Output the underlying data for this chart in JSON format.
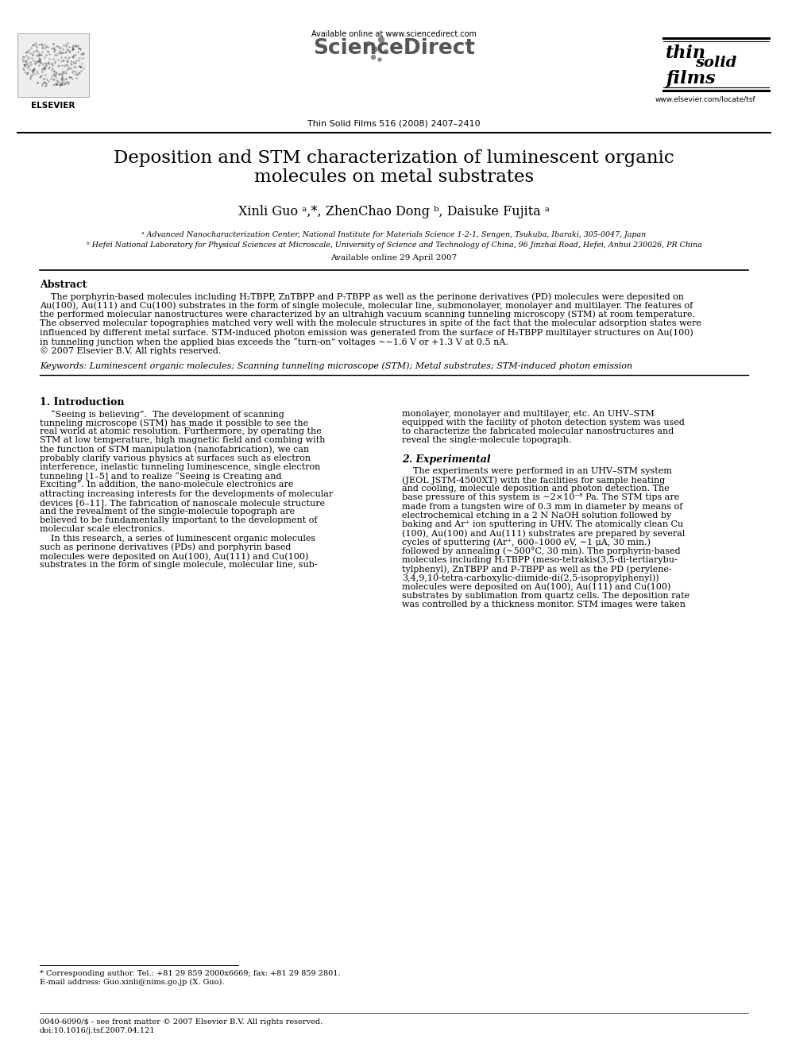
{
  "title_line1": "Deposition and STM characterization of luminescent organic",
  "title_line2": "molecules on metal substrates",
  "authors": "Xinli Guo ᵃ,*, ZhenChao Dong ᵇ, Daisuke Fujita ᵃ",
  "affil_a": "ᵃ Advanced Nanocharacterization Center, National Institute for Materials Science 1-2-1, Sengen, Tsukuba, Ibaraki, 305-0047, Japan",
  "affil_b": "ᵇ Hefei National Laboratory for Physical Sciences at Microscale, University of Science and Technology of China, 96 Jinzhai Road, Hefei, Anhui 230026, PR China",
  "available_online_article": "Available online 29 April 2007",
  "journal_header": "Available online at www.sciencedirect.com",
  "journal_name": "ScienceDirect",
  "journal_ref": "Thin Solid Films 516 (2008) 2407–2410",
  "journal_website": "www.elsevier.com/locate/tsf",
  "elsevier_label": "ELSEVIER",
  "abstract_title": "Abstract",
  "keywords_line": "Keywords: Luminescent organic molecules; Scanning tunneling microscope (STM); Metal substrates; STM-induced photon emission",
  "section1_title": "1. Introduction",
  "section2_title": "2. Experimental",
  "footnote1": "* Corresponding author. Tel.: +81 29 859 2000x6669; fax: +81 29 859 2801.",
  "footnote2": "E-mail address: Guo.xinli@nims.go.jp (X. Guo).",
  "footer1": "0040-6090/$ - see front matter © 2007 Elsevier B.V. All rights reserved.",
  "footer2": "doi:10.1016/j.tsf.2007.04.121",
  "abstract_lines": [
    "    The porphyrin-based molecules including H₂TBPP, ZnTBPP and P₇TBPP as well as the perinone derivatives (PD) molecules were deposited on",
    "Au(100), Au(111) and Cu(100) substrates in the form of single molecule, molecular line, submonolayer, monolayer and multilayer. The features of",
    "the performed molecular nanostructures were characterized by an ultrahigh vacuum scanning tunneling microscopy (STM) at room temperature.",
    "The observed molecular topographies matched very well with the molecule structures in spite of the fact that the molecular adsorption states were",
    "influenced by different metal surface. STM-induced photon emission was generated from the surface of H₂TBPP multilayer structures on Au(100)",
    "in tunneling junction when the applied bias exceeds the “turn-on” voltages ∼−1.6 V or +1.3 V at 0.5 nA.",
    "© 2007 Elsevier B.V. All rights reserved."
  ],
  "sec1_left_lines": [
    "    “Seeing is believing”.  The development of scanning",
    "tunneling microscope (STM) has made it possible to see the",
    "real world at atomic resolution. Furthermore, by operating the",
    "STM at low temperature, high magnetic field and combing with",
    "the function of STM manipulation (nanofabrication), we can",
    "probably clarify various physics at surfaces such as electron",
    "interference, inelastic tunneling luminescence, single electron",
    "tunneling [1–5] and to realize “Seeing is Creating and",
    "Exciting”. In addition, the nano-molecule electronics are",
    "attracting increasing interests for the developments of molecular",
    "devices [6–11]. The fabrication of nanoscale molecule structure",
    "and the revealment of the single-molecule topograph are",
    "believed to be fundamentally important to the development of",
    "molecular scale electronics.",
    "    In this research, a series of luminescent organic molecules",
    "such as perinone derivatives (PDs) and porphyrin based",
    "molecules were deposited on Au(100), Au(111) and Cu(100)",
    "substrates in the form of single molecule, molecular line, sub-"
  ],
  "sec1_right_lines": [
    "monolayer, monolayer and multilayer, etc. An UHV–STM",
    "equipped with the facility of photon detection system was used",
    "to characterize the fabricated molecular nanostructures and",
    "reveal the single-molecule topograph."
  ],
  "sec2_right_lines": [
    "    The experiments were performed in an UHV–STM system",
    "(JEOL JSTM-4500XT) with the facilities for sample heating",
    "and cooling, molecule deposition and photon detection. The",
    "base pressure of this system is ∼2×10⁻⁸ Pa. The STM tips are",
    "made from a tungsten wire of 0.3 mm in diameter by means of",
    "electrochemical etching in a 2 N NaOH solution followed by",
    "baking and Ar⁺ ion sputtering in UHV. The atomically clean Cu",
    "(100), Au(100) and Au(111) substrates are prepared by several",
    "cycles of sputtering (Ar⁺, 600–1000 eV, ∼1 μA, 30 min.)",
    "followed by annealing (∼500°C, 30 min). The porphyrin-based",
    "molecules including H₂TBPP (meso-tetrakis(3,5-di-tertiarybu-",
    "tylphenyl), ZnTBPP and P₇TBPP as well as the PD (perylene-",
    "3,4,9,10-tetra-carboxylic-diimide-di(2,5-isopropylphenyl))",
    "molecules were deposited on Au(100), Au(111) and Cu(100)",
    "substrates by sublimation from quartz cells. The deposition rate",
    "was controlled by a thickness monitor. STM images were taken"
  ],
  "bg_color": "#ffffff"
}
